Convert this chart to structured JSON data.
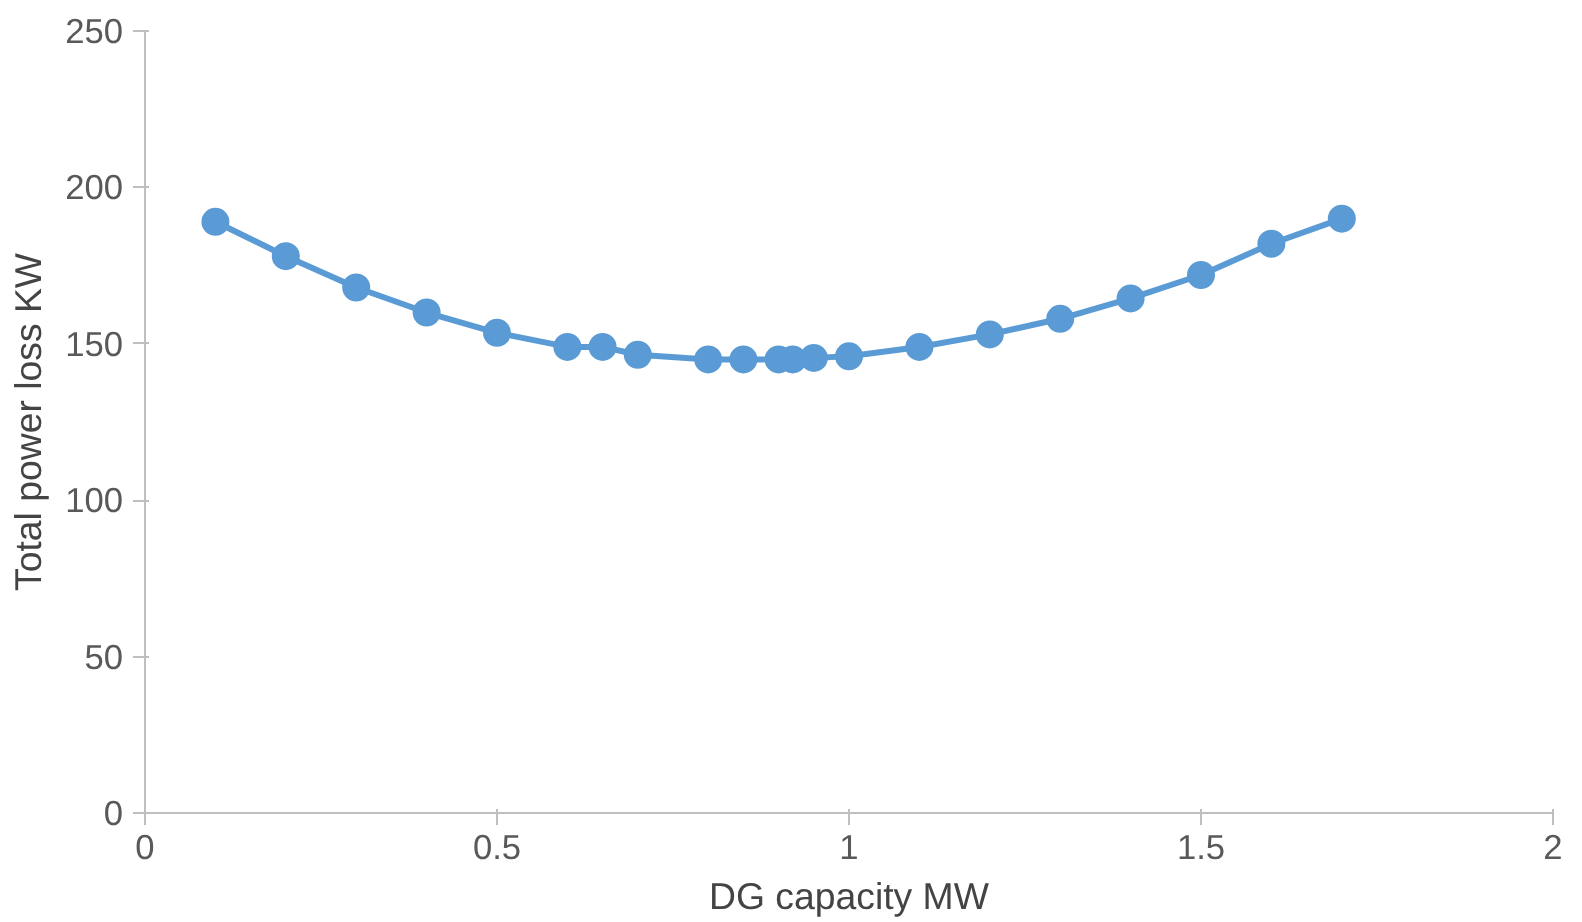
{
  "chart_data": {
    "type": "line",
    "xlabel": "DG capacity MW",
    "ylabel": "Total power loss KW",
    "x": [
      0.1,
      0.2,
      0.3,
      0.4,
      0.5,
      0.6,
      0.65,
      0.7,
      0.8,
      0.85,
      0.9,
      0.92,
      0.95,
      1.0,
      1.1,
      1.2,
      1.3,
      1.4,
      1.5,
      1.6,
      1.7
    ],
    "series": [
      {
        "color": "#5b9bd5",
        "values": [
          189,
          178,
          168,
          160,
          153.5,
          149,
          149,
          146.5,
          145,
          145,
          145,
          145,
          145.5,
          146,
          149,
          153,
          158,
          164.5,
          172,
          182,
          190
        ]
      }
    ],
    "xlim": [
      0,
      2
    ],
    "xticks": [
      0,
      0.5,
      1,
      1.5,
      2
    ],
    "ylim": [
      0,
      250
    ],
    "yticks": [
      0,
      50,
      100,
      150,
      200,
      250
    ],
    "grid": false,
    "marker": "circle",
    "line_style": "solid"
  }
}
